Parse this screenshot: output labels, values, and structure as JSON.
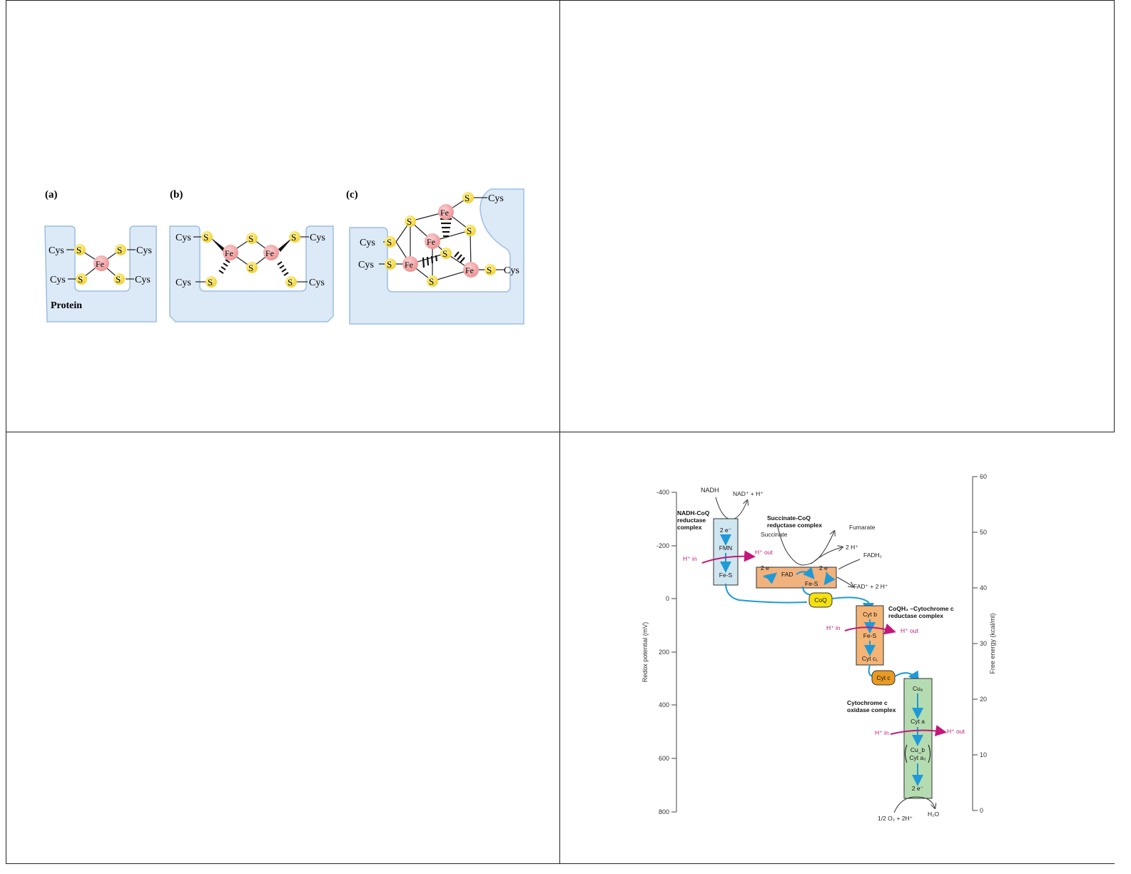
{
  "fes": {
    "labels": {
      "a": "(a)",
      "b": "(b)",
      "c": "(c)"
    },
    "cys": "Cys",
    "s": "S",
    "fe": "Fe",
    "protein": "Protein"
  },
  "etc": {
    "left_axis": {
      "label": "Redox potential (mV)",
      "ticks": [
        "-400",
        "-200",
        "0",
        "200",
        "400",
        "600",
        "800"
      ]
    },
    "right_axis": {
      "label": "Free energy (kcal/ml)",
      "ticks": [
        "60",
        "50",
        "40",
        "30",
        "20",
        "10",
        "0"
      ]
    },
    "nadh": "NADH",
    "nad": "NAD⁺ + H⁺",
    "complex1": {
      "title1": "NADH-CoQ",
      "title2": "reductase",
      "title3": "complex",
      "e": "2 e⁻",
      "fmn": "FMN",
      "fes": "Fe-S"
    },
    "complex2": {
      "title1": "Succinate-CoQ",
      "title2": "reductase complex",
      "succinate": "Succinate",
      "fumarate": "Fumarate",
      "h2": "2 H⁺",
      "fadh2": "FADH₂",
      "fad2h": "FAD⁺ + 2 H⁺",
      "e1": "2 e⁻",
      "e2": "2 e⁻",
      "fad": "FAD",
      "fes": "Fe-S"
    },
    "coq": "CoQ",
    "complex3": {
      "title1": "CoQH₂ –Cytochrome c",
      "title2": "reductase complex",
      "cytb": "Cyt b",
      "fes": "Fe-S",
      "cytc1": "Cyt c₁"
    },
    "cytc": "Cyt c",
    "complex4": {
      "title1": "Cytochrome c",
      "title2": "oxidase complex",
      "cua": "Cuₐ",
      "cyta": "Cyt a",
      "cub": "Cu_b",
      "cyta3": "Cyt a₃",
      "e": "2 e⁻"
    },
    "o2": "1/2 O₂ + 2H⁺",
    "h2o": "H₂O",
    "h_in": "H⁺ in",
    "h_out": "H⁺ out"
  }
}
